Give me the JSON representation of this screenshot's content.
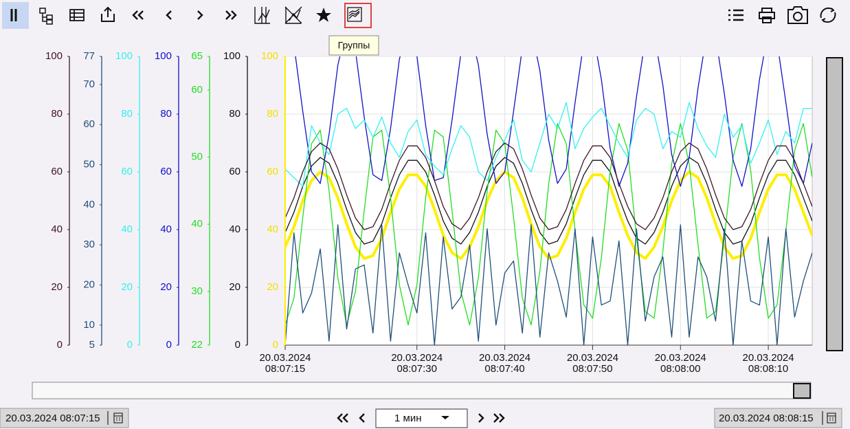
{
  "toolbar": {
    "tooltip": "Группы"
  },
  "chart_data": {
    "type": "line",
    "x": [
      "20.03.2024 08:07:15",
      "20.03.2024 08:07:16",
      "20.03.2024 08:07:17",
      "20.03.2024 08:07:18",
      "20.03.2024 08:07:19",
      "20.03.2024 08:07:20",
      "20.03.2024 08:07:21",
      "20.03.2024 08:07:22",
      "20.03.2024 08:07:23",
      "20.03.2024 08:07:24",
      "20.03.2024 08:07:25",
      "20.03.2024 08:07:26",
      "20.03.2024 08:07:27",
      "20.03.2024 08:07:28",
      "20.03.2024 08:07:29",
      "20.03.2024 08:07:30",
      "20.03.2024 08:07:31",
      "20.03.2024 08:07:32",
      "20.03.2024 08:07:33",
      "20.03.2024 08:07:34",
      "20.03.2024 08:07:35",
      "20.03.2024 08:07:36",
      "20.03.2024 08:07:37",
      "20.03.2024 08:07:38",
      "20.03.2024 08:07:39",
      "20.03.2024 08:07:40",
      "20.03.2024 08:07:41",
      "20.03.2024 08:07:42",
      "20.03.2024 08:07:43",
      "20.03.2024 08:07:44",
      "20.03.2024 08:07:45",
      "20.03.2024 08:07:46",
      "20.03.2024 08:07:47",
      "20.03.2024 08:07:48",
      "20.03.2024 08:07:49",
      "20.03.2024 08:07:50",
      "20.03.2024 08:07:51",
      "20.03.2024 08:07:52",
      "20.03.2024 08:07:53",
      "20.03.2024 08:07:54",
      "20.03.2024 08:07:55",
      "20.03.2024 08:07:56",
      "20.03.2024 08:07:57",
      "20.03.2024 08:07:58",
      "20.03.2024 08:07:59",
      "20.03.2024 08:08:00",
      "20.03.2024 08:08:01",
      "20.03.2024 08:08:02",
      "20.03.2024 08:08:03",
      "20.03.2024 08:08:04",
      "20.03.2024 08:08:05",
      "20.03.2024 08:08:06",
      "20.03.2024 08:08:07",
      "20.03.2024 08:08:08",
      "20.03.2024 08:08:09",
      "20.03.2024 08:08:10",
      "20.03.2024 08:08:11",
      "20.03.2024 08:08:12",
      "20.03.2024 08:08:13",
      "20.03.2024 08:08:14",
      "20.03.2024 08:08:15"
    ],
    "xlim": [
      "20.03.2024 08:07:15",
      "20.03.2024 08:08:15"
    ],
    "xticks": [
      "20.03.2024 08:07:15",
      "20.03.2024 08:07:30",
      "20.03.2024 08:07:40",
      "20.03.2024 08:07:50",
      "20.03.2024 08:08:00",
      "20.03.2024 08:08:10"
    ],
    "grid": true,
    "series": [
      {
        "color": "#3d1426",
        "ylim": [
          0,
          100
        ],
        "yticks": [
          0,
          20,
          40,
          60,
          80,
          100
        ],
        "values": [
          44,
          51,
          60,
          67,
          70,
          68,
          61,
          52,
          44,
          40,
          41,
          47,
          56,
          64,
          69,
          69,
          65,
          57,
          48,
          42,
          40,
          44,
          51,
          60,
          67,
          70,
          68,
          61,
          52,
          44,
          40,
          41,
          47,
          56,
          64,
          69,
          69,
          65,
          56,
          48,
          42,
          40,
          44,
          51,
          60,
          67,
          70,
          68,
          61,
          52,
          44,
          40,
          41,
          47,
          56,
          64,
          69,
          69,
          64,
          56,
          48
        ]
      },
      {
        "color": "#1f4e79",
        "ylim": [
          5,
          77
        ],
        "yticks": [
          5,
          10,
          20,
          30,
          40,
          50,
          60,
          70,
          77
        ],
        "values": [
          5,
          33,
          13,
          18,
          29,
          6,
          35,
          9,
          24,
          25,
          8,
          35,
          6,
          28,
          20,
          13,
          33,
          5,
          32,
          14,
          17,
          30,
          6,
          34,
          10,
          23,
          26,
          8,
          35,
          7,
          28,
          21,
          12,
          34,
          5,
          32,
          15,
          16,
          31,
          5,
          34,
          11,
          22,
          27,
          7,
          35,
          7,
          27,
          22,
          11,
          34,
          5,
          31,
          16,
          15,
          32,
          5,
          34,
          12,
          21,
          28
        ]
      },
      {
        "color": "#33f0f0",
        "ylim": [
          0,
          100
        ],
        "yticks": [
          0,
          20,
          40,
          60,
          80,
          100
        ],
        "values": [
          61,
          58,
          55,
          76,
          70,
          66,
          80,
          82,
          75,
          78,
          72,
          79,
          70,
          65,
          74,
          78,
          66,
          62,
          59,
          68,
          76,
          72,
          60,
          57,
          65,
          71,
          78,
          64,
          60,
          70,
          80,
          75,
          84,
          68,
          75,
          79,
          82,
          76,
          70,
          65,
          78,
          82,
          80,
          68,
          74,
          72,
          84,
          75,
          69,
          65,
          80,
          72,
          76,
          63,
          70,
          78,
          66,
          74,
          70,
          82,
          82
        ]
      },
      {
        "color": "#1010c8",
        "ylim": [
          0,
          100
        ],
        "yticks": [
          0,
          20,
          40,
          60,
          80,
          100
        ],
        "values": [
          109,
          104,
          81,
          60,
          56,
          73,
          97,
          110,
          102,
          79,
          59,
          57,
          75,
          99,
          110,
          100,
          76,
          57,
          58,
          78,
          101,
          110,
          97,
          73,
          56,
          60,
          81,
          103,
          110,
          95,
          71,
          56,
          61,
          84,
          105,
          109,
          92,
          68,
          55,
          63,
          86,
          106,
          108,
          90,
          66,
          55,
          65,
          89,
          108,
          107,
          87,
          64,
          55,
          68,
          92,
          109,
          105,
          84,
          62,
          56,
          70
        ]
      },
      {
        "color": "#22dd22",
        "ylim": [
          22,
          65
        ],
        "yticks": [
          22,
          30,
          40,
          50,
          60,
          65
        ],
        "values": [
          25,
          29,
          41,
          52,
          54,
          45,
          32,
          25,
          30,
          42,
          53,
          54,
          44,
          31,
          25,
          31,
          44,
          54,
          53,
          42,
          30,
          25,
          32,
          45,
          54,
          52,
          41,
          29,
          25,
          33,
          46,
          55,
          52,
          39,
          28,
          26,
          35,
          48,
          55,
          51,
          38,
          27,
          26,
          36,
          49,
          55,
          49,
          37,
          26,
          27,
          38,
          50,
          55,
          48,
          35,
          26,
          28,
          39,
          51,
          55,
          47
        ]
      },
      {
        "color": "#111111",
        "ylim": [
          0,
          100
        ],
        "yticks": [
          0,
          20,
          40,
          60,
          80,
          100
        ],
        "values": [
          39,
          46,
          55,
          62,
          65,
          63,
          56,
          47,
          39,
          35,
          36,
          42,
          51,
          59,
          64,
          64,
          60,
          52,
          43,
          37,
          35,
          39,
          46,
          55,
          62,
          65,
          63,
          56,
          47,
          39,
          35,
          36,
          42,
          51,
          59,
          64,
          64,
          60,
          51,
          43,
          37,
          35,
          39,
          46,
          55,
          62,
          65,
          63,
          56,
          47,
          39,
          35,
          36,
          42,
          51,
          59,
          64,
          64,
          59,
          51,
          43
        ]
      },
      {
        "color": "#ffee00",
        "ylim": [
          0,
          100
        ],
        "yticks": [
          0,
          20,
          40,
          60,
          80,
          100
        ],
        "values": [
          34,
          41,
          50,
          57,
          60,
          58,
          51,
          42,
          34,
          30,
          31,
          37,
          46,
          54,
          59,
          59,
          55,
          47,
          38,
          32,
          30,
          34,
          41,
          50,
          57,
          60,
          58,
          51,
          42,
          34,
          30,
          31,
          37,
          46,
          54,
          59,
          59,
          55,
          46,
          38,
          32,
          30,
          34,
          41,
          50,
          57,
          60,
          58,
          51,
          42,
          34,
          30,
          31,
          37,
          46,
          54,
          59,
          59,
          54,
          46,
          38
        ]
      }
    ]
  },
  "footer": {
    "start": "20.03.2024 08:07:15",
    "period": "1 мин",
    "end": "20.03.2024 08:08:15"
  }
}
